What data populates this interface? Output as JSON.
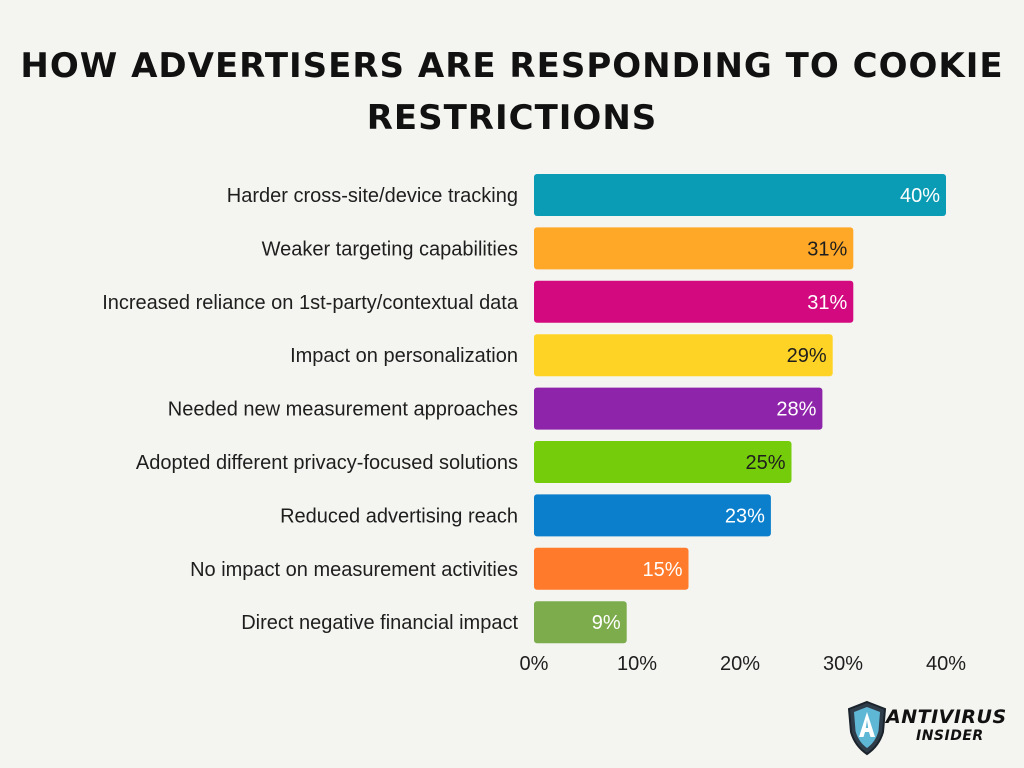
{
  "chart_data": {
    "type": "bar",
    "orientation": "horizontal",
    "title": "HOW ADVERTISERS ARE RESPONDING TO COOKIE RESTRICTIONS",
    "categories": [
      "Harder cross-site/device tracking",
      "Weaker targeting capabilities",
      "Increased reliance on 1st-party/contextual data",
      "Impact on personalization",
      "Needed new measurement approaches",
      "Adopted different privacy-focused solutions",
      "Reduced advertising reach",
      "No impact on measurement activities",
      "Direct negative financial impact"
    ],
    "values": [
      40,
      31,
      31,
      29,
      28,
      25,
      23,
      15,
      9
    ],
    "value_labels": [
      "40%",
      "31%",
      "31%",
      "29%",
      "28%",
      "25%",
      "23%",
      "15%",
      "9%"
    ],
    "colors": [
      "#0a9bb5",
      "#ffa726",
      "#d3097f",
      "#ffd326",
      "#8e24aa",
      "#75cc0a",
      "#0b7fcc",
      "#ff7a2b",
      "#7cac4c"
    ],
    "label_colors": [
      "#ffffff",
      "#1e1e1e",
      "#ffffff",
      "#1e1e1e",
      "#ffffff",
      "#1e1e1e",
      "#ffffff",
      "#ffffff",
      "#ffffff"
    ],
    "xlim": [
      0,
      40
    ],
    "xticks": [
      0,
      10,
      20,
      30,
      40
    ],
    "xtick_labels": [
      "0%",
      "10%",
      "20%",
      "30%",
      "40%"
    ],
    "xlabel": "",
    "ylabel": "",
    "grid": false,
    "legend": "none"
  },
  "logo": {
    "word_1": "ANTIVIRUS",
    "word_2": "INSIDER",
    "icon": "shield-icon"
  }
}
